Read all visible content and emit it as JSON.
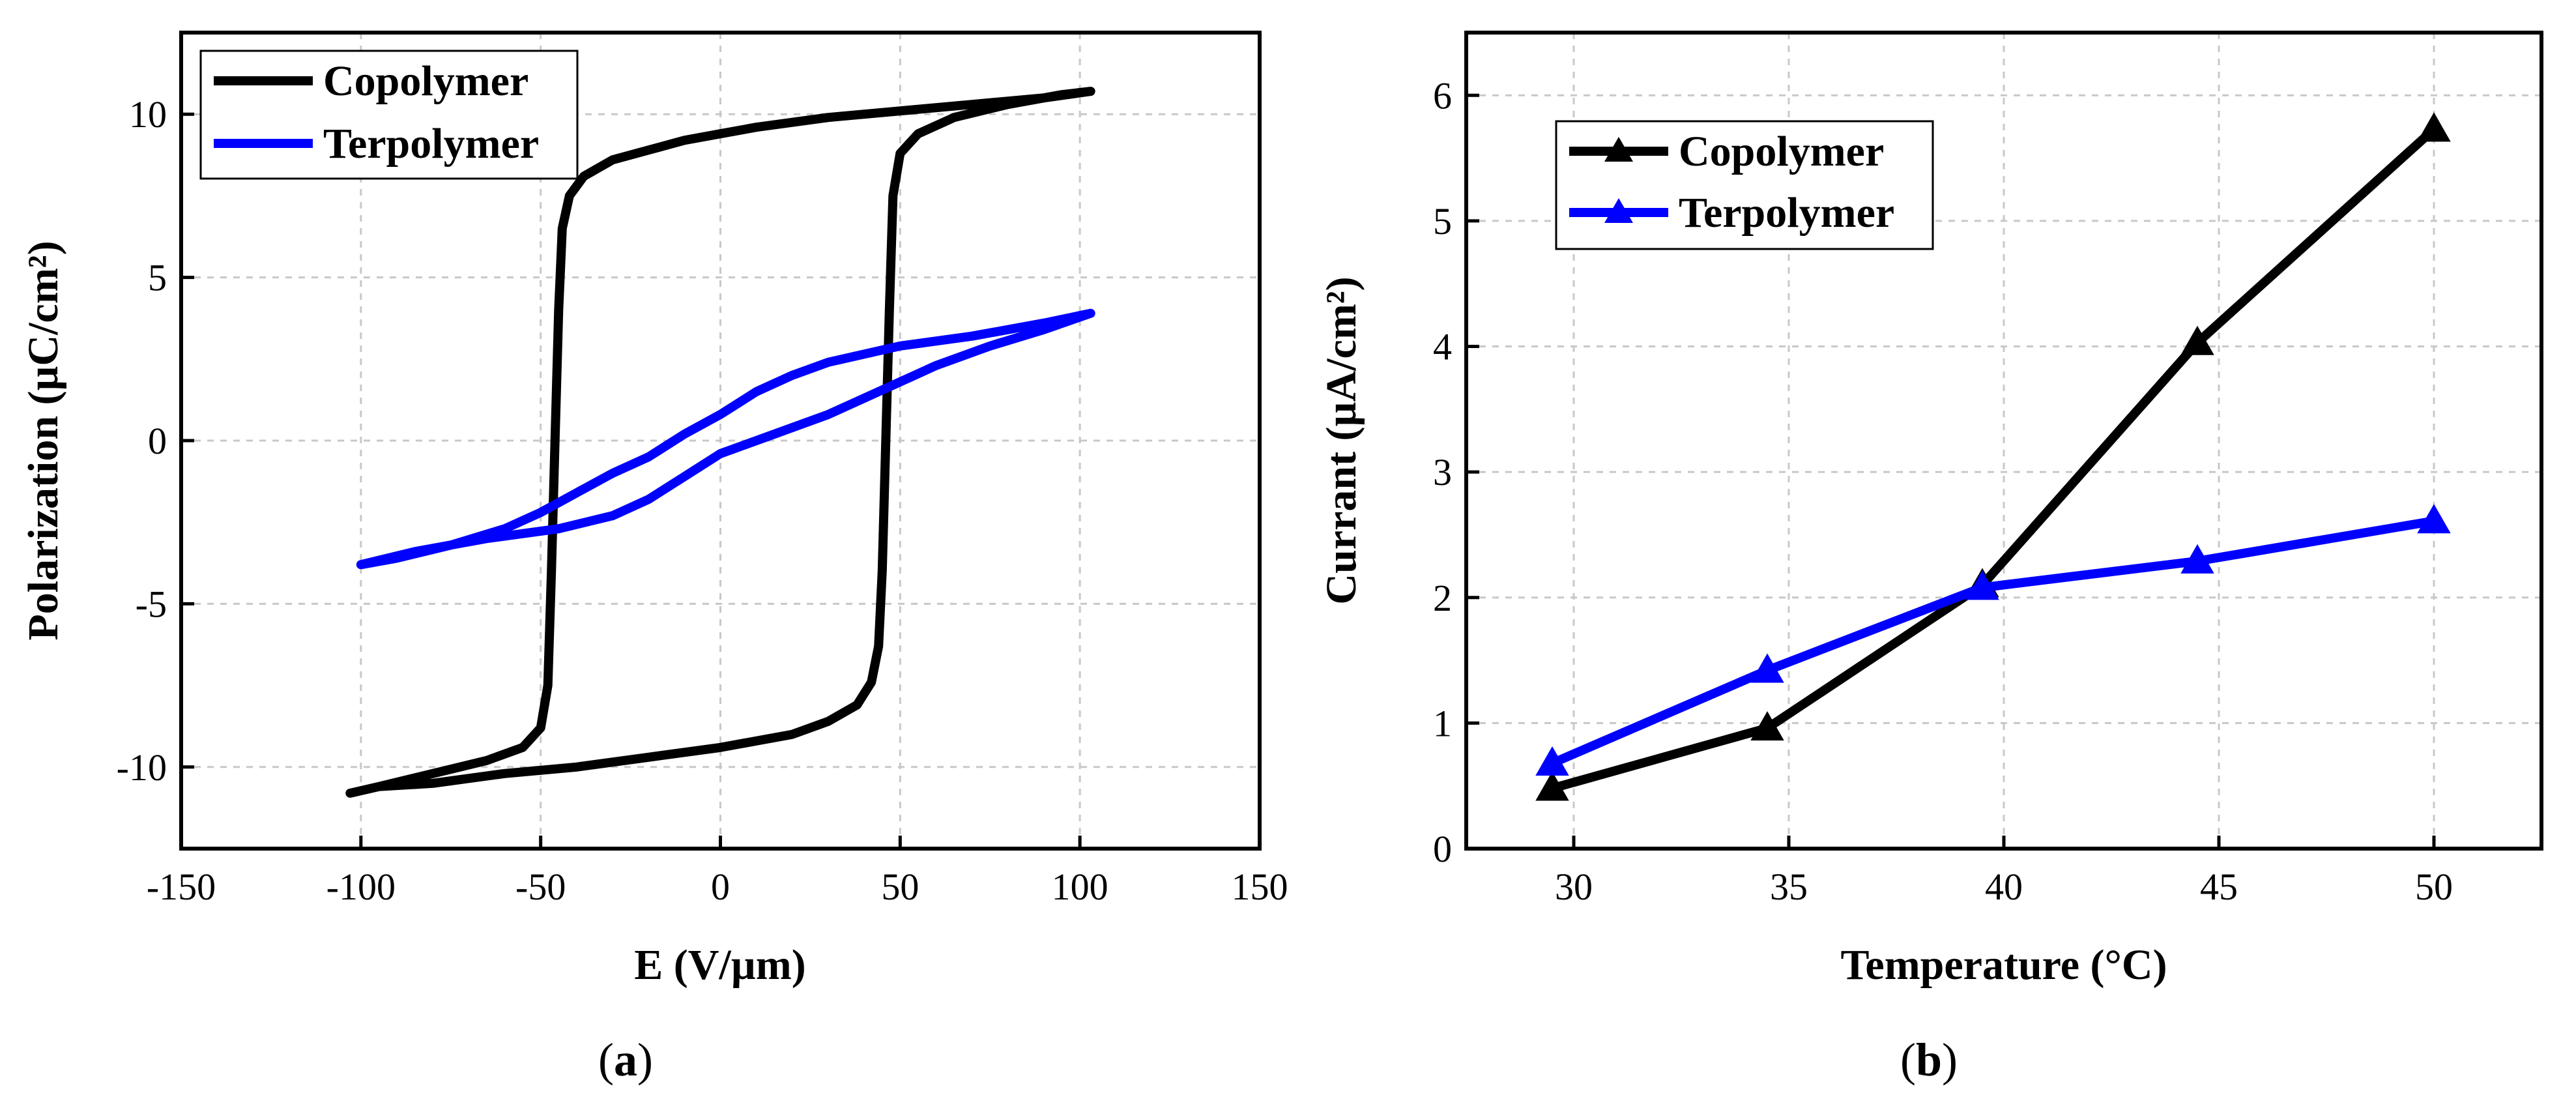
{
  "chart_data": [
    {
      "id": "a",
      "type": "line",
      "caption_open": "(",
      "caption_letter": "a",
      "caption_close": ")",
      "xlabel": "E (V/µm)",
      "ylabel": "Polarization (µC/cm²)",
      "xlim": [
        -150,
        150
      ],
      "ylim": [
        -12.5,
        12.5
      ],
      "xticks": [
        -150,
        -100,
        -50,
        0,
        50,
        100,
        150
      ],
      "yticks": [
        -10,
        -5,
        0,
        5,
        10
      ],
      "grid": true,
      "legend_position": "top-left",
      "series": [
        {
          "name": "Copolymer",
          "color": "#000000",
          "marker": "none",
          "x": [
            103,
            90,
            70,
            50,
            30,
            10,
            0,
            -10,
            -20,
            -30,
            -38,
            -42,
            -44,
            -45,
            -46,
            -47,
            -48,
            -50,
            -55,
            -65,
            -80,
            -95,
            -103,
            -95,
            -80,
            -60,
            -40,
            -20,
            0,
            20,
            30,
            38,
            42,
            44,
            45,
            46,
            47,
            48,
            50,
            55,
            65,
            80,
            95,
            103
          ],
          "y": [
            10.7,
            10.5,
            10.3,
            10.1,
            9.9,
            9.6,
            9.4,
            9.2,
            8.9,
            8.6,
            8.1,
            7.5,
            6.5,
            4.0,
            0.0,
            -4.0,
            -7.5,
            -8.8,
            -9.4,
            -9.8,
            -10.2,
            -10.6,
            -10.8,
            -10.6,
            -10.5,
            -10.2,
            -10.0,
            -9.7,
            -9.4,
            -9.0,
            -8.6,
            -8.1,
            -7.4,
            -6.3,
            -4.0,
            0.0,
            4.0,
            7.5,
            8.8,
            9.4,
            9.9,
            10.3,
            10.6,
            10.7
          ]
        },
        {
          "name": "Terpolymer",
          "color": "#0000ff",
          "marker": "none",
          "x": [
            0,
            10,
            20,
            30,
            40,
            50,
            60,
            75,
            90,
            103,
            90,
            70,
            50,
            30,
            20,
            10,
            0,
            -10,
            -20,
            -30,
            -40,
            -50,
            -60,
            -75,
            -90,
            -100,
            -85,
            -65,
            -45,
            -30,
            -20,
            -10,
            0
          ],
          "y": [
            -0.4,
            0.0,
            0.4,
            0.8,
            1.3,
            1.8,
            2.3,
            2.9,
            3.4,
            3.9,
            3.6,
            3.2,
            2.9,
            2.4,
            2.0,
            1.5,
            0.8,
            0.2,
            -0.5,
            -1.0,
            -1.6,
            -2.2,
            -2.7,
            -3.2,
            -3.6,
            -3.8,
            -3.4,
            -3.0,
            -2.7,
            -2.3,
            -1.8,
            -1.1,
            -0.4
          ]
        }
      ]
    },
    {
      "id": "b",
      "type": "line",
      "caption_open": "(",
      "caption_letter": "b",
      "caption_close": ")",
      "xlabel": "Temperature (°C)",
      "ylabel": "Currant (µA/cm²)",
      "xlim": [
        27.5,
        52.5
      ],
      "ylim": [
        0,
        6.5
      ],
      "xticks": [
        30,
        35,
        40,
        45,
        50
      ],
      "yticks": [
        0,
        1,
        2,
        3,
        4,
        5,
        6
      ],
      "grid": true,
      "legend_position": "top-left",
      "series": [
        {
          "name": "Copolymer",
          "color": "#000000",
          "marker": "triangle",
          "x": [
            29.5,
            34.5,
            39.5,
            44.5,
            50
          ],
          "y": [
            0.48,
            0.96,
            2.1,
            4.03,
            5.73
          ]
        },
        {
          "name": "Terpolymer",
          "color": "#0000ff",
          "marker": "triangle",
          "x": [
            29.5,
            34.5,
            39.5,
            44.5,
            50
          ],
          "y": [
            0.68,
            1.42,
            2.08,
            2.29,
            2.61
          ]
        }
      ]
    }
  ]
}
